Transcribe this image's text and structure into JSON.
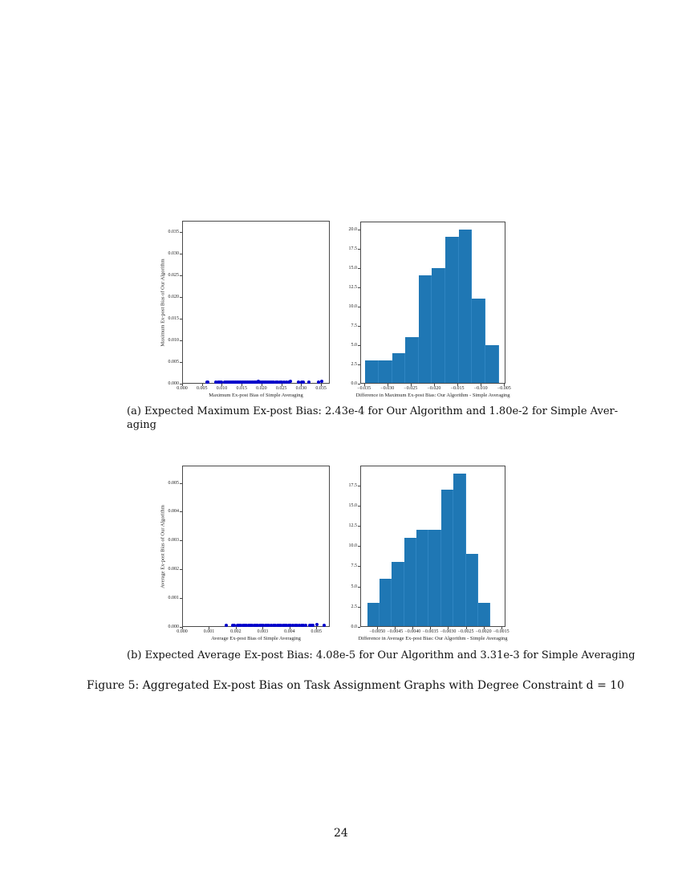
{
  "figure": {
    "caption": "Figure 5: Aggregated Ex-post Bias on Task Assignment Graphs with Degree Constraint d = 10",
    "subcaption_a": "(a) Expected Maximum Ex-post Bias: 2.43e-4 for Our Algorithm and 1.80e-2 for Simple Aver-aging",
    "subcaption_a_line1": "(a) Expected Maximum Ex-post Bias: 2.43e-4 for Our Algorithm and 1.80e-2 for Simple Aver-",
    "subcaption_a_line2": "aging",
    "subcaption_b": "(b) Expected Average Ex-post Bias: 4.08e-5 for Our Algorithm and 3.31e-3 for Simple Averaging"
  },
  "page_number": "24",
  "colors": {
    "bar": "#1f77b4",
    "scatter": "#0000cc",
    "frame": "#4a4a4a"
  },
  "chart_data": [
    {
      "id": "a-scatter",
      "type": "scatter",
      "title": "",
      "xlabel": "Maximum Ex-post Bias of Simple Averaging",
      "ylabel": "Maximum Ex-post Bias of Our Algorithm",
      "xlim": [
        0.0,
        0.0372
      ],
      "ylim": [
        0.0,
        0.0376
      ],
      "xticks": [
        "0.000",
        "0.005",
        "0.010",
        "0.015",
        "0.020",
        "0.025",
        "0.030",
        "0.035"
      ],
      "yticks": [
        "0.000",
        "0.005",
        "0.010",
        "0.015",
        "0.020",
        "0.025",
        "0.030",
        "0.035"
      ],
      "grid": false,
      "x": [
        0.0063,
        0.0065,
        0.0085,
        0.009,
        0.0095,
        0.01,
        0.0108,
        0.0112,
        0.0116,
        0.012,
        0.0123,
        0.0127,
        0.013,
        0.0133,
        0.0136,
        0.0139,
        0.0142,
        0.0145,
        0.0148,
        0.0151,
        0.0154,
        0.0157,
        0.016,
        0.0163,
        0.0166,
        0.0169,
        0.0172,
        0.0175,
        0.0178,
        0.0181,
        0.0184,
        0.0187,
        0.019,
        0.0193,
        0.0196,
        0.0199,
        0.0202,
        0.0205,
        0.0208,
        0.0211,
        0.0215,
        0.0219,
        0.0223,
        0.0227,
        0.0231,
        0.0236,
        0.0241,
        0.0246,
        0.0251,
        0.0256,
        0.0262,
        0.0268,
        0.0273,
        0.0294,
        0.0302,
        0.0306,
        0.032,
        0.0343,
        0.0352
      ],
      "y": [
        0.0001,
        0.0001,
        0.0001,
        0.0001,
        0.0001,
        0.0001,
        0.0001,
        0.0002,
        0.0001,
        0.0002,
        0.0002,
        0.0003,
        0.0003,
        0.0002,
        0.0003,
        0.0002,
        0.0003,
        0.0002,
        0.0002,
        0.0003,
        0.0002,
        0.0002,
        0.0002,
        0.0002,
        0.0003,
        0.0002,
        0.0002,
        0.0002,
        0.0003,
        0.0003,
        0.0004,
        0.0003,
        0.0002,
        0.0005,
        0.0003,
        0.0002,
        0.0004,
        0.0003,
        0.0002,
        0.0002,
        0.0003,
        0.0002,
        0.0002,
        0.0002,
        0.0002,
        0.0003,
        0.0002,
        0.0002,
        0.0002,
        0.0002,
        0.0002,
        0.0002,
        0.0005,
        0.0001,
        0.0002,
        0.0002,
        0.0001,
        0.0002,
        0.0006
      ]
    },
    {
      "id": "a-hist",
      "type": "bar",
      "title": "",
      "xlabel": "Difference in Maximum Ex-post Bias: Our Algorithm - Simple Averaging",
      "ylabel": "",
      "bin_edges": [
        -0.0348,
        -0.0319,
        -0.029,
        -0.0262,
        -0.0233,
        -0.0205,
        -0.0176,
        -0.0147,
        -0.0119,
        -0.009,
        -0.0061
      ],
      "values": [
        3,
        3,
        4,
        6,
        14,
        15,
        19,
        20,
        11,
        5
      ],
      "xlim": [
        -0.0358,
        -0.0047
      ],
      "ylim": [
        0.0,
        21.0
      ],
      "xticks": [
        "−0.035",
        "−0.030",
        "−0.025",
        "−0.020",
        "−0.015",
        "−0.010",
        "−0.005"
      ],
      "yticks": [
        "0.0",
        "2.5",
        "5.0",
        "7.5",
        "10.0",
        "12.5",
        "15.0",
        "17.5",
        "20.0"
      ],
      "grid": false
    },
    {
      "id": "b-scatter",
      "type": "scatter",
      "title": "",
      "xlabel": "Average Ex-post Bias of Simple Averaging",
      "ylabel": "Average Ex-post Bias of Our Algorithm",
      "xlim": [
        0.0,
        0.0055
      ],
      "ylim": [
        0.0,
        0.0056
      ],
      "xticks": [
        "0.000",
        "0.001",
        "0.002",
        "0.003",
        "0.004",
        "0.005"
      ],
      "yticks": [
        "0.000",
        "0.001",
        "0.002",
        "0.003",
        "0.004",
        "0.005"
      ],
      "grid": false,
      "x": [
        0.00165,
        0.00188,
        0.00195,
        0.00205,
        0.00212,
        0.00219,
        0.00226,
        0.00233,
        0.0024,
        0.00247,
        0.00254,
        0.00261,
        0.00268,
        0.00275,
        0.00282,
        0.00289,
        0.00296,
        0.00303,
        0.0031,
        0.00317,
        0.00324,
        0.00331,
        0.0034,
        0.00348,
        0.00355,
        0.00362,
        0.00369,
        0.00376,
        0.00383,
        0.0039,
        0.00398,
        0.00405,
        0.00412,
        0.0042,
        0.00428,
        0.00436,
        0.00444,
        0.00452,
        0.0046,
        0.00475,
        0.00482,
        0.00488,
        0.00502,
        0.0053
      ],
      "y": [
        4e-05,
        4e-05,
        4e-05,
        4e-05,
        4e-05,
        4e-05,
        4e-05,
        4e-05,
        5e-05,
        4e-05,
        4e-05,
        5e-05,
        5e-05,
        4e-05,
        5e-05,
        4e-05,
        4e-05,
        5e-05,
        4e-05,
        4e-05,
        5e-05,
        4e-05,
        5e-05,
        4e-05,
        5e-05,
        5e-05,
        4e-05,
        6e-05,
        5e-05,
        4e-05,
        5e-05,
        4e-05,
        5e-05,
        4e-05,
        4e-05,
        5e-05,
        4e-05,
        4e-05,
        4e-05,
        5e-05,
        4e-05,
        3e-05,
        7e-05,
        4e-05
      ]
    },
    {
      "id": "b-hist",
      "type": "bar",
      "title": "",
      "xlabel": "Difference in Average Ex-post Bias: Our Algorithm - Simple Averaging",
      "ylabel": "",
      "bin_edges": [
        -0.00528,
        -0.00494,
        -0.00459,
        -0.00424,
        -0.00389,
        -0.00355,
        -0.0032,
        -0.00285,
        -0.0025,
        -0.00216,
        -0.00181
      ],
      "values": [
        3,
        6,
        8,
        11,
        12,
        12,
        17,
        19,
        9,
        3
      ],
      "xlim": [
        -0.00548,
        -0.00138
      ],
      "ylim": [
        0.0,
        19.95
      ],
      "xticks": [
        "−0.0050",
        "−0.0045",
        "−0.0040",
        "−0.0035",
        "−0.0030",
        "−0.0025",
        "−0.0020",
        "−0.0015"
      ],
      "yticks": [
        "0.0",
        "2.5",
        "5.0",
        "7.5",
        "10.0",
        "12.5",
        "15.0",
        "17.5"
      ],
      "grid": false
    }
  ]
}
